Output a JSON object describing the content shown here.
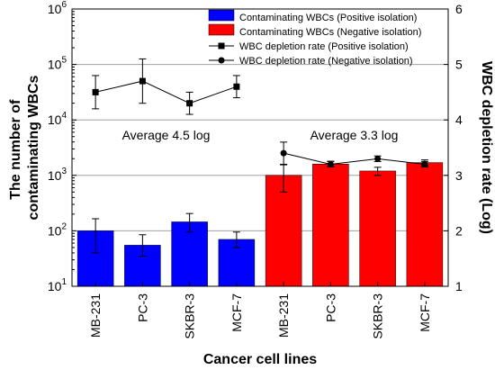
{
  "chart_data": {
    "type": "bar",
    "xlabel": "Cancer cell lines",
    "ylabel_left_lines": [
      "The number of",
      "contaminating WBCs"
    ],
    "ylabel_right": "WBC depletion rate (Log)",
    "categories": [
      "MB-231",
      "PC-3",
      "SKBR-3",
      "MCF-7",
      "MB-231",
      "PC-3",
      "SKBR-3",
      "MCF-7"
    ],
    "left_axis": {
      "scale": "log",
      "ylim": [
        10,
        1000000
      ],
      "tick_base": "10",
      "tick_exponents": [
        "1",
        "2",
        "3",
        "4",
        "5",
        "6"
      ]
    },
    "right_axis": {
      "scale": "linear",
      "ylim": [
        1,
        6
      ],
      "ticks": [
        "1",
        "2",
        "3",
        "4",
        "5",
        "6"
      ]
    },
    "grid": {
      "horizontal": true,
      "color": "#a0a0a0"
    },
    "legend_position": "top-right",
    "bar_series": [
      {
        "name": "Contaminating WBCs (Positive isolation)",
        "color": "#0000ff",
        "category_indices": [
          0,
          1,
          2,
          3
        ],
        "values": [
          100,
          55,
          145,
          70
        ],
        "err_low": [
          40,
          35,
          95,
          50
        ],
        "err_high": [
          165,
          85,
          205,
          95
        ]
      },
      {
        "name": "Contaminating WBCs (Negative isolation)",
        "color": "#ff0000",
        "category_indices": [
          4,
          5,
          6,
          7
        ],
        "values": [
          1000,
          1600,
          1200,
          1700
        ],
        "err_low": [
          500,
          1450,
          1000,
          1500
        ],
        "err_high": [
          1550,
          1800,
          1400,
          1900
        ]
      }
    ],
    "line_series": [
      {
        "name": "WBC depletion rate (Positive isolation)",
        "axis": "right",
        "marker": "square",
        "color": "#000000",
        "category_indices": [
          0,
          1,
          2,
          3
        ],
        "values": [
          4.5,
          4.7,
          4.3,
          4.6
        ],
        "err_low": [
          4.2,
          4.3,
          4.1,
          4.4
        ],
        "err_high": [
          4.8,
          5.1,
          4.5,
          4.8
        ]
      },
      {
        "name": "WBC depletion rate (Negative isolation)",
        "axis": "right",
        "marker": "circle",
        "color": "#000000",
        "category_indices": [
          4,
          5,
          6,
          7
        ],
        "values": [
          3.4,
          3.2,
          3.3,
          3.2
        ],
        "err_low": [
          3.2,
          3.15,
          3.25,
          3.15
        ],
        "err_high": [
          3.6,
          3.25,
          3.35,
          3.25
        ]
      }
    ],
    "annotations": [
      {
        "text": "Average 4.5 log",
        "group": "positive"
      },
      {
        "text": "Average 3.3 log",
        "group": "negative"
      }
    ]
  }
}
